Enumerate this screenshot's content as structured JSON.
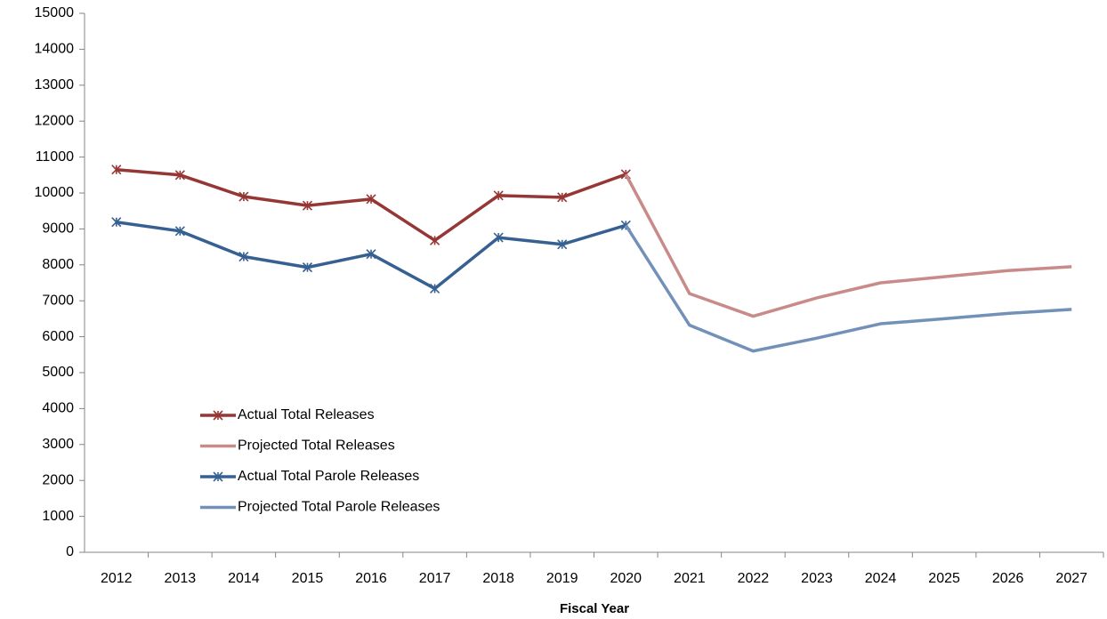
{
  "chart_data": {
    "type": "line",
    "x_label": "Fiscal Year",
    "categories": [
      "2012",
      "2013",
      "2014",
      "2015",
      "2016",
      "2017",
      "2018",
      "2019",
      "2020",
      "2021",
      "2022",
      "2023",
      "2024",
      "2025",
      "2026",
      "2027"
    ],
    "ylim": [
      0,
      15000
    ],
    "yticks": [
      0,
      1000,
      2000,
      3000,
      4000,
      5000,
      6000,
      7000,
      8000,
      9000,
      10000,
      11000,
      12000,
      13000,
      14000,
      15000
    ],
    "legend": "lower-left",
    "series": [
      {
        "name": "Actual Total Releases",
        "color": "#953735",
        "marker": true,
        "values": [
          10650,
          10500,
          9900,
          9650,
          9830,
          8680,
          9930,
          9880,
          10520,
          null,
          null,
          null,
          null,
          null,
          null,
          null
        ]
      },
      {
        "name": "Projected Total Releases",
        "color": "#c98b89",
        "marker": false,
        "values": [
          null,
          null,
          null,
          null,
          null,
          null,
          null,
          null,
          10520,
          7200,
          6570,
          7080,
          7500,
          7670,
          7840,
          7950
        ]
      },
      {
        "name": "Actual Total Parole Releases",
        "color": "#376092",
        "marker": true,
        "values": [
          9190,
          8940,
          8230,
          7930,
          8300,
          7340,
          8760,
          8570,
          9100,
          null,
          null,
          null,
          null,
          null,
          null,
          null
        ]
      },
      {
        "name": "Projected Total Parole Releases",
        "color": "#7391b8",
        "marker": false,
        "values": [
          null,
          null,
          null,
          null,
          null,
          null,
          null,
          null,
          9100,
          6320,
          5600,
          5960,
          6360,
          6500,
          6650,
          6760
        ]
      }
    ]
  }
}
